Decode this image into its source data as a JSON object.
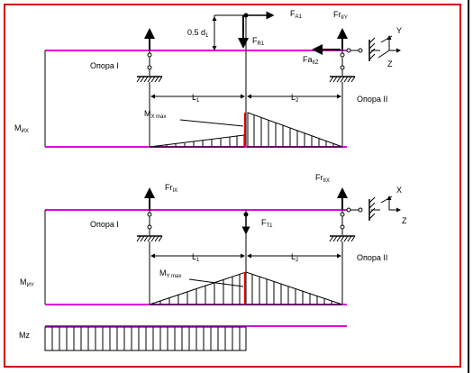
{
  "labels": {
    "fa1": "F",
    "fa1_sub": "A1",
    "fr1y": "Fr",
    "fr1y_sub": "IIY",
    "half_d": "0.5 d",
    "half_d_sub": "1",
    "fr1": "F",
    "fr1_sub": "R1",
    "fa2": "Fa",
    "fa2_sub": "IIZ",
    "axis_y": "Y",
    "axis_z_top": "Z",
    "axis_x": "X",
    "axis_z_bottom": "Z",
    "support_1_top": "Опора I",
    "support_2_top": "Опора II",
    "l1_top": "L",
    "l1_top_sub": "1",
    "l2_top": "L",
    "l2_top_sub": "2",
    "mix": "M",
    "mix_sub": "ИX",
    "mxmax": "M",
    "mxmax_sub": "X max",
    "fr1x": "Fr",
    "fr1x_sub": "IX",
    "fr2x": "Fr",
    "fr2x_sub": "IIX",
    "support_1_bottom": "Опора I",
    "support_2_bottom": "Опора II",
    "ft1": "F",
    "ft1_sub": "T1",
    "l1_bottom": "L",
    "l1_bottom_sub": "1",
    "l2_bottom": "L",
    "l2_bottom_sub": "2",
    "miy": "M",
    "miy_sub": "ИY",
    "mymax": "M",
    "mymax_sub": "Y max",
    "mz": "Mz"
  },
  "colors": {
    "frame": "#d40000",
    "shaft": "#e000e0",
    "max_line": "#e00000",
    "ink": "#000000"
  }
}
